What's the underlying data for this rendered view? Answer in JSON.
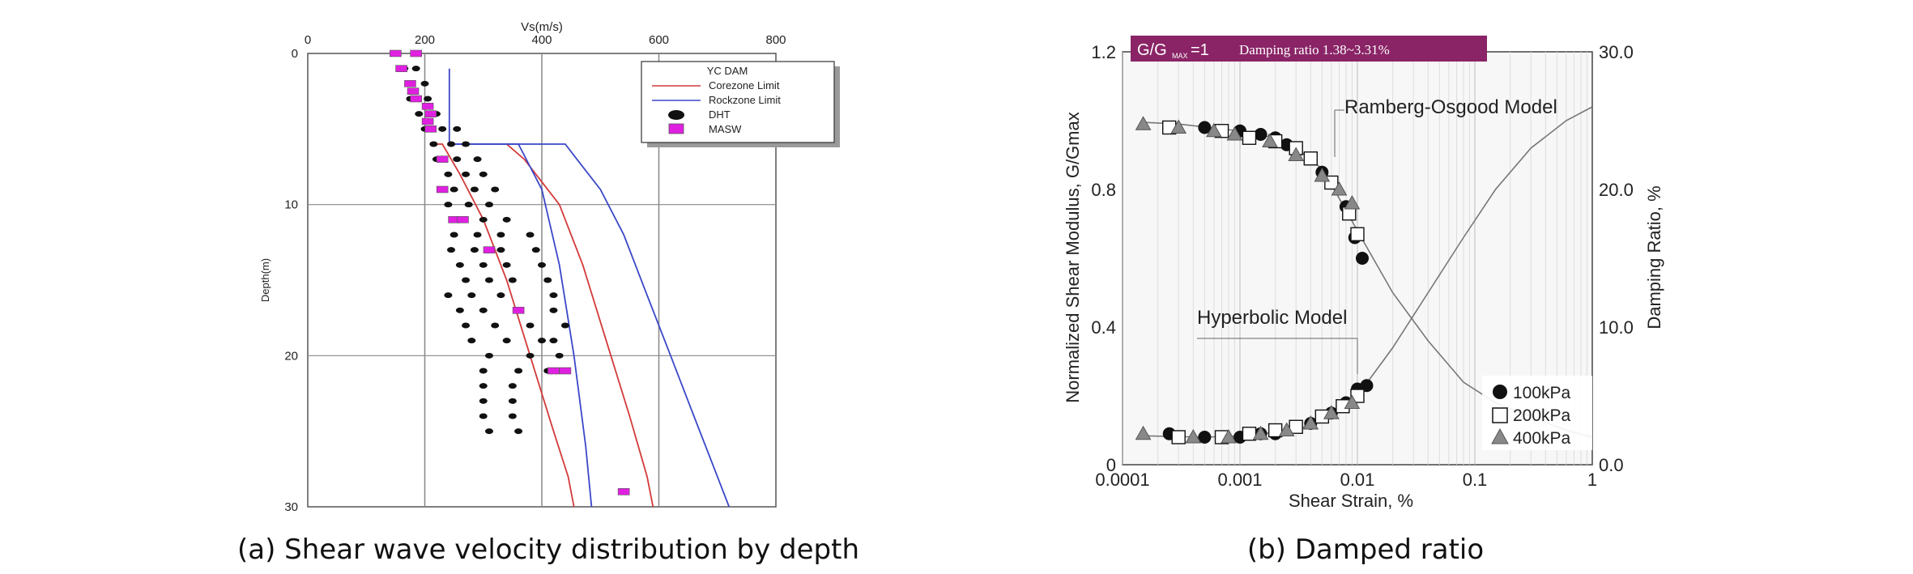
{
  "captions": {
    "a": "(a) Shear wave velocity distribution by depth",
    "b": "(b) Damped ratio"
  },
  "chart_data": [
    {
      "type": "scatter",
      "title": "",
      "xlabel": "Vs(m/s)",
      "ylabel": "Depth(m)",
      "xlim": [
        0,
        800
      ],
      "ylim": [
        30,
        0
      ],
      "x_ticks": [
        "0",
        "200",
        "400",
        "600",
        "800"
      ],
      "y_ticks": [
        "0",
        "10",
        "20",
        "30"
      ],
      "legend_position": "top-right",
      "legend": {
        "title": "YC DAM",
        "entries": [
          "Corezone Limit",
          "Rockzone Limit",
          "DHT",
          "MASW"
        ]
      },
      "colors": {
        "corezone": "#d33a3a",
        "rockzone": "#3a48c8",
        "dht": "#111111",
        "masw": "#e020e0",
        "grid": "#888888"
      },
      "series": [
        {
          "name": "Corezone Limit",
          "kind": "line",
          "points": [
            [
              210,
              6
            ],
            [
              230,
              6
            ],
            [
              260,
              8
            ],
            [
              300,
              11
            ],
            [
              340,
              15
            ],
            [
              380,
              20
            ],
            [
              420,
              25
            ],
            [
              445,
              28
            ],
            [
              455,
              30
            ]
          ]
        },
        {
          "name": "Corezone Limit",
          "kind": "line",
          "points": [
            [
              340,
              6
            ],
            [
              370,
              7
            ],
            [
              400,
              8.5
            ],
            [
              430,
              10
            ],
            [
              470,
              14
            ],
            [
              510,
              19
            ],
            [
              550,
              24
            ],
            [
              580,
              28
            ],
            [
              590,
              30
            ]
          ]
        },
        {
          "name": "Rockzone Limit",
          "kind": "line",
          "points": [
            [
              242,
              1
            ],
            [
              242,
              6
            ],
            [
              360,
              6
            ],
            [
              400,
              9
            ],
            [
              430,
              14
            ],
            [
              455,
              20
            ],
            [
              475,
              26
            ],
            [
              485,
              30
            ]
          ]
        },
        {
          "name": "Rockzone Limit",
          "kind": "line",
          "points": [
            [
              250,
              6
            ],
            [
              440,
              6
            ],
            [
              460,
              7
            ],
            [
              500,
              9
            ],
            [
              540,
              12
            ],
            [
              580,
              16
            ],
            [
              620,
              20
            ],
            [
              660,
              24
            ],
            [
              700,
              28
            ],
            [
              720,
              30
            ]
          ]
        },
        {
          "name": "DHT",
          "kind": "scatter",
          "points": [
            [
              165,
              1
            ],
            [
              185,
              1
            ],
            [
              200,
              2
            ],
            [
              175,
              3
            ],
            [
              205,
              3
            ],
            [
              190,
              4
            ],
            [
              220,
              4
            ],
            [
              200,
              5
            ],
            [
              230,
              5
            ],
            [
              255,
              5
            ],
            [
              215,
              6
            ],
            [
              245,
              6
            ],
            [
              270,
              6
            ],
            [
              220,
              7
            ],
            [
              255,
              7
            ],
            [
              290,
              7
            ],
            [
              240,
              8
            ],
            [
              270,
              8
            ],
            [
              300,
              8
            ],
            [
              250,
              9
            ],
            [
              285,
              9
            ],
            [
              320,
              9
            ],
            [
              240,
              10
            ],
            [
              275,
              10
            ],
            [
              310,
              10
            ],
            [
              260,
              11
            ],
            [
              300,
              11
            ],
            [
              340,
              11
            ],
            [
              250,
              12
            ],
            [
              290,
              12
            ],
            [
              330,
              12
            ],
            [
              380,
              12
            ],
            [
              245,
              13
            ],
            [
              285,
              13
            ],
            [
              330,
              13
            ],
            [
              390,
              13
            ],
            [
              260,
              14
            ],
            [
              300,
              14
            ],
            [
              340,
              14
            ],
            [
              400,
              14
            ],
            [
              270,
              15
            ],
            [
              310,
              15
            ],
            [
              350,
              15
            ],
            [
              410,
              15
            ],
            [
              240,
              16
            ],
            [
              280,
              16
            ],
            [
              330,
              16
            ],
            [
              420,
              16
            ],
            [
              260,
              17
            ],
            [
              300,
              17
            ],
            [
              360,
              17
            ],
            [
              420,
              17
            ],
            [
              270,
              18
            ],
            [
              320,
              18
            ],
            [
              380,
              18
            ],
            [
              440,
              18
            ],
            [
              280,
              19
            ],
            [
              340,
              19
            ],
            [
              400,
              19
            ],
            [
              420,
              19
            ],
            [
              310,
              20
            ],
            [
              380,
              20
            ],
            [
              430,
              20
            ],
            [
              300,
              21
            ],
            [
              360,
              21
            ],
            [
              410,
              21
            ],
            [
              300,
              22
            ],
            [
              350,
              22
            ],
            [
              300,
              23
            ],
            [
              350,
              23
            ],
            [
              300,
              24
            ],
            [
              350,
              24
            ],
            [
              310,
              25
            ],
            [
              360,
              25
            ]
          ]
        },
        {
          "name": "MASW",
          "kind": "scatter",
          "points": [
            [
              150,
              0
            ],
            [
              185,
              0
            ],
            [
              160,
              1
            ],
            [
              175,
              2
            ],
            [
              180,
              2.5
            ],
            [
              185,
              3
            ],
            [
              205,
              3.5
            ],
            [
              210,
              4
            ],
            [
              205,
              4.5
            ],
            [
              210,
              5
            ],
            [
              230,
              7
            ],
            [
              230,
              9
            ],
            [
              250,
              11
            ],
            [
              265,
              11
            ],
            [
              310,
              13
            ],
            [
              360,
              17
            ],
            [
              420,
              21
            ],
            [
              440,
              21
            ],
            [
              540,
              29
            ]
          ]
        }
      ]
    },
    {
      "type": "scatter",
      "title": "",
      "annotation_box": "G/G",
      "annotation_box_sub": "MAX",
      "annotation_box_rest": "=1",
      "annotation_box_text": "Damping ratio 1.38~3.31%",
      "xlabel": "Shear Strain, %",
      "ylabel": "Normalized Shear Modulus, G/Gmax",
      "y2label": "Damping Ratio, %",
      "xscale": "log",
      "xlim": [
        0.0001,
        1
      ],
      "ylim": [
        0,
        1.2
      ],
      "y2lim": [
        0,
        30
      ],
      "x_ticks": [
        "0.0001",
        "0.001",
        "0.01",
        "0.1",
        "1"
      ],
      "y_ticks": [
        "0",
        "0.4",
        "0.8",
        "1.2"
      ],
      "y2_ticks": [
        "0.0",
        "10.0",
        "20.0",
        "30.0"
      ],
      "legend_position": "bottom-right",
      "legend": {
        "entries": [
          "100kPa",
          "200kPa",
          "400kPa"
        ]
      },
      "annotations": [
        "Ramberg-Osgood Model",
        "Hyperbolic Model"
      ],
      "colors": {
        "header_bg": "#8a2466",
        "curve": "#777777",
        "grid": "#cfcfcf"
      },
      "series": [
        {
          "name": "100kPa",
          "axis": "left",
          "points": [
            [
              0.00025,
              0.98
            ],
            [
              0.0005,
              0.98
            ],
            [
              0.001,
              0.97
            ],
            [
              0.0015,
              0.96
            ],
            [
              0.002,
              0.95
            ],
            [
              0.0025,
              0.93
            ],
            [
              0.003,
              0.91
            ],
            [
              0.005,
              0.85
            ],
            [
              0.008,
              0.75
            ],
            [
              0.0095,
              0.66
            ],
            [
              0.011,
              0.6
            ]
          ]
        },
        {
          "name": "200kPa",
          "axis": "left",
          "points": [
            [
              0.00025,
              0.98
            ],
            [
              0.0007,
              0.97
            ],
            [
              0.0012,
              0.95
            ],
            [
              0.002,
              0.94
            ],
            [
              0.003,
              0.92
            ],
            [
              0.004,
              0.89
            ],
            [
              0.006,
              0.82
            ],
            [
              0.0085,
              0.73
            ],
            [
              0.01,
              0.67
            ]
          ]
        },
        {
          "name": "400kPa",
          "axis": "left",
          "points": [
            [
              0.00015,
              0.99
            ],
            [
              0.0003,
              0.98
            ],
            [
              0.0006,
              0.97
            ],
            [
              0.0009,
              0.96
            ],
            [
              0.0018,
              0.94
            ],
            [
              0.003,
              0.9
            ],
            [
              0.005,
              0.84
            ],
            [
              0.007,
              0.8
            ],
            [
              0.009,
              0.76
            ]
          ]
        },
        {
          "name": "100kPa",
          "axis": "left",
          "points": [
            [
              0.00025,
              0.09
            ],
            [
              0.0005,
              0.08
            ],
            [
              0.001,
              0.08
            ],
            [
              0.0015,
              0.09
            ],
            [
              0.002,
              0.09
            ],
            [
              0.003,
              0.11
            ],
            [
              0.004,
              0.12
            ],
            [
              0.006,
              0.15
            ],
            [
              0.008,
              0.18
            ],
            [
              0.01,
              0.22
            ],
            [
              0.012,
              0.23
            ]
          ]
        },
        {
          "name": "200kPa",
          "axis": "left",
          "points": [
            [
              0.0003,
              0.08
            ],
            [
              0.0007,
              0.08
            ],
            [
              0.0012,
              0.09
            ],
            [
              0.002,
              0.1
            ],
            [
              0.003,
              0.11
            ],
            [
              0.005,
              0.14
            ],
            [
              0.0075,
              0.17
            ],
            [
              0.01,
              0.2
            ]
          ]
        },
        {
          "name": "400kPa",
          "axis": "left",
          "points": [
            [
              0.00015,
              0.09
            ],
            [
              0.0004,
              0.08
            ],
            [
              0.0008,
              0.08
            ],
            [
              0.0015,
              0.09
            ],
            [
              0.0025,
              0.1
            ],
            [
              0.004,
              0.12
            ],
            [
              0.006,
              0.15
            ],
            [
              0.009,
              0.18
            ]
          ]
        },
        {
          "name": "",
          "axis": "left",
          "kind": "curve",
          "points": [
            [
              0.00015,
              0.995
            ],
            [
              0.0003,
              0.99
            ],
            [
              0.001,
              0.97
            ],
            [
              0.002,
              0.95
            ],
            [
              0.003,
              0.92
            ],
            [
              0.005,
              0.86
            ],
            [
              0.008,
              0.74
            ],
            [
              0.01,
              0.68
            ],
            [
              0.02,
              0.5
            ],
            [
              0.04,
              0.36
            ],
            [
              0.08,
              0.24
            ],
            [
              0.15,
              0.18
            ],
            [
              0.3,
              0.14
            ],
            [
              0.6,
              0.1
            ],
            [
              1,
              0.08
            ]
          ]
        },
        {
          "name": "",
          "axis": "right",
          "kind": "curve",
          "points": [
            [
              0.00015,
              2.1
            ],
            [
              0.0005,
              2.0
            ],
            [
              0.001,
              2.1
            ],
            [
              0.003,
              2.5
            ],
            [
              0.006,
              3.6
            ],
            [
              0.01,
              5.0
            ],
            [
              0.02,
              8.5
            ],
            [
              0.04,
              12.5
            ],
            [
              0.08,
              16.5
            ],
            [
              0.15,
              20
            ],
            [
              0.3,
              23
            ],
            [
              0.6,
              25
            ],
            [
              1,
              26
            ]
          ]
        }
      ]
    }
  ]
}
